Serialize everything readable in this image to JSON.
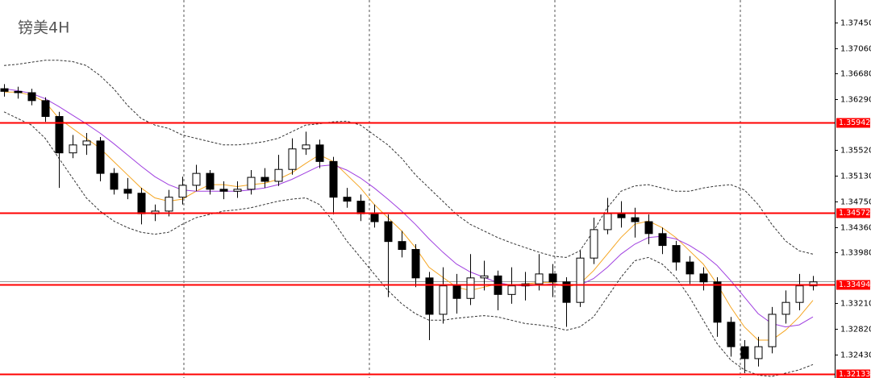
{
  "chart_data": {
    "type": "candlestick",
    "title": "镑美4H",
    "ylim": [
      1.32077,
      1.37791
    ],
    "yticks": [
      {
        "value": 1.3745,
        "label": "1.37450"
      },
      {
        "value": 1.3706,
        "label": "1.37060"
      },
      {
        "value": 1.3668,
        "label": "1.36680"
      },
      {
        "value": 1.3629,
        "label": "1.36290"
      },
      {
        "value": 1.3552,
        "label": "1.35520"
      },
      {
        "value": 1.3513,
        "label": "1.35130"
      },
      {
        "value": 1.3475,
        "label": "1.34750"
      },
      {
        "value": 1.3436,
        "label": "1.34360"
      },
      {
        "value": 1.3398,
        "label": "1.33980"
      },
      {
        "value": 1.3321,
        "label": "1.33210"
      },
      {
        "value": 1.3282,
        "label": "1.32820"
      },
      {
        "value": 1.3243,
        "label": "1.32430"
      }
    ],
    "up_color": "#ffffff",
    "down_color": "#000000",
    "open": [
      1.3645,
      1.3641,
      1.3639,
      1.3627,
      1.3603,
      1.3548,
      1.356,
      1.3566,
      1.3517,
      1.3493,
      1.3487,
      1.3456,
      1.346,
      1.3481,
      1.3499,
      1.3517,
      1.3493,
      1.349,
      1.3493,
      1.3511,
      1.3505,
      1.3523,
      1.3554,
      1.356,
      1.3535,
      1.3481,
      1.3475,
      1.3456,
      1.3444,
      1.3414,
      1.3402,
      1.3359,
      1.3304,
      1.3347,
      1.3328,
      1.3359,
      1.3362,
      1.3334,
      1.3347,
      1.335,
      1.3365,
      1.3353,
      1.3322,
      1.3389,
      1.3432,
      1.3456,
      1.345,
      1.3444,
      1.3426,
      1.3408,
      1.3383,
      1.3365,
      1.3353,
      1.3292,
      1.3255,
      1.3237,
      1.3255,
      1.3304,
      1.3322,
      1.3347
    ],
    "high": [
      1.3652,
      1.3648,
      1.3645,
      1.3632,
      1.361,
      1.3575,
      1.3578,
      1.3572,
      1.3525,
      1.351,
      1.3495,
      1.347,
      1.3492,
      1.3512,
      1.353,
      1.3522,
      1.3505,
      1.3505,
      1.3522,
      1.3525,
      1.3545,
      1.357,
      1.358,
      1.3568,
      1.3542,
      1.3495,
      1.3485,
      1.347,
      1.3455,
      1.343,
      1.341,
      1.3368,
      1.3375,
      1.3365,
      1.3395,
      1.3385,
      1.337,
      1.3375,
      1.3368,
      1.3395,
      1.338,
      1.336,
      1.34,
      1.345,
      1.348,
      1.3475,
      1.3465,
      1.3455,
      1.3435,
      1.3415,
      1.3392,
      1.3375,
      1.336,
      1.33,
      1.3265,
      1.327,
      1.3315,
      1.334,
      1.3365,
      1.3362
    ],
    "low": [
      1.3633,
      1.363,
      1.362,
      1.3595,
      1.3495,
      1.354,
      1.3545,
      1.3505,
      1.3485,
      1.3478,
      1.344,
      1.3445,
      1.3452,
      1.347,
      1.349,
      1.3485,
      1.3478,
      1.348,
      1.3485,
      1.3495,
      1.3498,
      1.3515,
      1.3545,
      1.3525,
      1.3455,
      1.3465,
      1.3445,
      1.3435,
      1.333,
      1.339,
      1.3345,
      1.3265,
      1.329,
      1.3305,
      1.3318,
      1.334,
      1.331,
      1.332,
      1.3325,
      1.334,
      1.333,
      1.3285,
      1.3315,
      1.338,
      1.3425,
      1.3435,
      1.342,
      1.341,
      1.3395,
      1.337,
      1.335,
      1.334,
      1.327,
      1.324,
      1.3215,
      1.3225,
      1.3245,
      1.329,
      1.331,
      1.334
    ],
    "close": [
      1.3641,
      1.3639,
      1.3627,
      1.3603,
      1.3548,
      1.356,
      1.3566,
      1.3517,
      1.3493,
      1.3487,
      1.3456,
      1.346,
      1.3481,
      1.3499,
      1.3517,
      1.3493,
      1.349,
      1.3493,
      1.3511,
      1.3505,
      1.3523,
      1.3554,
      1.356,
      1.3535,
      1.3481,
      1.3475,
      1.3456,
      1.3444,
      1.3414,
      1.3402,
      1.3359,
      1.3304,
      1.3347,
      1.3328,
      1.3359,
      1.3362,
      1.3334,
      1.3347,
      1.335,
      1.3365,
      1.3353,
      1.3322,
      1.3389,
      1.3432,
      1.3456,
      1.345,
      1.3444,
      1.3426,
      1.3408,
      1.3383,
      1.3365,
      1.3353,
      1.3292,
      1.3255,
      1.3237,
      1.3255,
      1.3304,
      1.3322,
      1.3347,
      1.3353
    ],
    "lines": [
      {
        "color": "#f5a623",
        "style": "solid",
        "values": [
          1.364,
          1.364,
          1.3635,
          1.3625,
          1.36,
          1.3585,
          1.357,
          1.3555,
          1.3535,
          1.3515,
          1.3495,
          1.348,
          1.3475,
          1.3478,
          1.349,
          1.35,
          1.35,
          1.3497,
          1.35,
          1.3502,
          1.3508,
          1.3518,
          1.3532,
          1.3545,
          1.3535,
          1.3515,
          1.3495,
          1.347,
          1.345,
          1.343,
          1.3405,
          1.3375,
          1.336,
          1.3345,
          1.334,
          1.3345,
          1.335,
          1.3348,
          1.335,
          1.3352,
          1.3352,
          1.3345,
          1.335,
          1.337,
          1.3395,
          1.342,
          1.344,
          1.3445,
          1.3435,
          1.342,
          1.34,
          1.338,
          1.335,
          1.3315,
          1.3285,
          1.3265,
          1.3265,
          1.328,
          1.33,
          1.3325
        ]
      },
      {
        "color": "#a040e0",
        "style": "solid",
        "values": [
          1.3645,
          1.3642,
          1.3638,
          1.363,
          1.3618,
          1.3605,
          1.3592,
          1.3578,
          1.3562,
          1.3545,
          1.3528,
          1.3512,
          1.35,
          1.3492,
          1.349,
          1.349,
          1.349,
          1.349,
          1.3492,
          1.3495,
          1.35,
          1.3508,
          1.3518,
          1.3528,
          1.353,
          1.3522,
          1.351,
          1.3495,
          1.3478,
          1.346,
          1.344,
          1.3418,
          1.3398,
          1.338,
          1.3368,
          1.336,
          1.3352,
          1.3348,
          1.3347,
          1.3348,
          1.335,
          1.3348,
          1.3348,
          1.3358,
          1.3375,
          1.3395,
          1.341,
          1.342,
          1.3422,
          1.3418,
          1.3408,
          1.3395,
          1.3378,
          1.3355,
          1.333,
          1.3305,
          1.329,
          1.3285,
          1.3288,
          1.33
        ]
      },
      {
        "color": "#333333",
        "style": "dashed",
        "values": [
          1.368,
          1.3682,
          1.3685,
          1.3688,
          1.3688,
          1.3686,
          1.368,
          1.3665,
          1.3645,
          1.362,
          1.36,
          1.359,
          1.3585,
          1.3575,
          1.357,
          1.3565,
          1.356,
          1.356,
          1.3562,
          1.3565,
          1.357,
          1.358,
          1.359,
          1.3592,
          1.3595,
          1.3596,
          1.359,
          1.3575,
          1.356,
          1.354,
          1.3515,
          1.3495,
          1.3475,
          1.3455,
          1.344,
          1.343,
          1.342,
          1.3412,
          1.3405,
          1.3398,
          1.3392,
          1.339,
          1.34,
          1.343,
          1.3465,
          1.349,
          1.3498,
          1.35,
          1.3495,
          1.349,
          1.349,
          1.3495,
          1.3498,
          1.35,
          1.3492,
          1.347,
          1.344,
          1.3415,
          1.34,
          1.3395
        ]
      },
      {
        "color": "#333333",
        "style": "dashed",
        "values": [
          1.361,
          1.36,
          1.359,
          1.357,
          1.354,
          1.351,
          1.348,
          1.346,
          1.3445,
          1.3435,
          1.3428,
          1.3425,
          1.3428,
          1.344,
          1.345,
          1.3455,
          1.346,
          1.3462,
          1.3465,
          1.347,
          1.3475,
          1.3478,
          1.348,
          1.347,
          1.3445,
          1.3415,
          1.339,
          1.3365,
          1.334,
          1.332,
          1.3305,
          1.3295,
          1.3295,
          1.3298,
          1.33,
          1.3302,
          1.33,
          1.3295,
          1.329,
          1.3288,
          1.3285,
          1.328,
          1.3285,
          1.33,
          1.333,
          1.336,
          1.3385,
          1.339,
          1.338,
          1.336,
          1.333,
          1.3295,
          1.326,
          1.3235,
          1.322,
          1.3212,
          1.321,
          1.3215,
          1.322,
          1.3228
        ]
      }
    ],
    "bid_line": {
      "value": 1.3354,
      "color": "#999999"
    },
    "levels_color": "#ff0000",
    "levels": [
      {
        "value": 1.35942,
        "label": "1.35942"
      },
      {
        "value": 1.34572,
        "label": "1.34572"
      },
      {
        "value": 1.33494,
        "label": "1.33494"
      },
      {
        "value": 1.32133,
        "label": "1.32133"
      }
    ]
  }
}
